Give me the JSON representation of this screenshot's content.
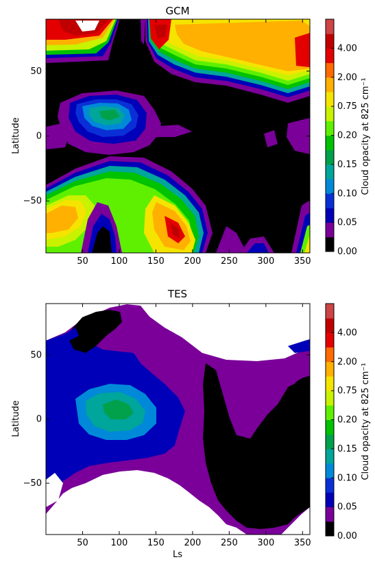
{
  "chart_data": [
    {
      "type": "heatmap",
      "title": "GCM",
      "xlabel": "",
      "ylabel": "Latitude",
      "xlim": [
        0,
        360
      ],
      "ylim": [
        -90,
        90
      ],
      "x_ticks": [
        50,
        100,
        150,
        200,
        250,
        300,
        350
      ],
      "y_ticks": [
        50,
        0,
        -50
      ],
      "y_tick_labels": [
        "50",
        "0",
        "−50"
      ],
      "colorbar": {
        "label": "Cloud opacity at 825 cm⁻¹",
        "levels": [
          "0.00",
          "0.05",
          "0.10",
          "0.15",
          "0.20",
          "0.75",
          "2.00",
          "4.00"
        ],
        "colors": [
          "#000000",
          "#7a0099",
          "#0000b8",
          "#0a2fd6",
          "#0089d8",
          "#00a59b",
          "#00a14a",
          "#00c200",
          "#5ef000",
          "#c8f200",
          "#f5e400",
          "#ffb000",
          "#ff6a00",
          "#e40000",
          "#c00000",
          "#cc4444"
        ]
      },
      "features": [
        {
          "Ls": [
            0,
            65
          ],
          "lat": [
            55,
            90
          ],
          "level": "2.00-4.00"
        },
        {
          "Ls": [
            140,
            360
          ],
          "lat": [
            40,
            85
          ],
          "level": "0.75-2.00"
        },
        {
          "Ls": [
            75,
            130
          ],
          "lat": [
            0,
            30
          ],
          "level": "0.10-0.20"
        },
        {
          "Ls": [
            0,
            110
          ],
          "lat": [
            -80,
            -30
          ],
          "level": "0.75-2.00"
        },
        {
          "Ls": [
            150,
            230
          ],
          "lat": [
            -85,
            -40
          ],
          "level": "2.00-4.00"
        }
      ]
    },
    {
      "type": "heatmap",
      "title": "TES",
      "xlabel": "Ls",
      "ylabel": "Latitude",
      "xlim": [
        0,
        360
      ],
      "ylim": [
        -90,
        90
      ],
      "x_ticks": [
        50,
        100,
        150,
        200,
        250,
        300,
        350
      ],
      "y_ticks": [
        50,
        0,
        -50
      ],
      "y_tick_labels": [
        "50",
        "0",
        "−50"
      ],
      "colorbar": {
        "label": "Cloud opacity at 825 cm⁻¹",
        "levels": [
          "0.00",
          "0.05",
          "0.10",
          "0.15",
          "0.20",
          "0.75",
          "2.00",
          "4.00"
        ],
        "colors": [
          "#000000",
          "#7a0099",
          "#0000b8",
          "#0a2fd6",
          "#0089d8",
          "#00a59b",
          "#00a14a",
          "#00c200",
          "#5ef000",
          "#c8f200",
          "#f5e400",
          "#ffb000",
          "#ff6a00",
          "#e40000",
          "#c00000",
          "#cc4444"
        ]
      },
      "features": [
        {
          "Ls": [
            50,
            140
          ],
          "lat": [
            -5,
            25
          ],
          "level": "0.10-0.20"
        },
        {
          "Ls": [
            255,
            345
          ],
          "lat": [
            -90,
            40
          ],
          "level": "0.00"
        },
        {
          "Ls": [
            50,
            150
          ],
          "lat": [
            60,
            90
          ],
          "level": "0.00"
        }
      ]
    }
  ]
}
